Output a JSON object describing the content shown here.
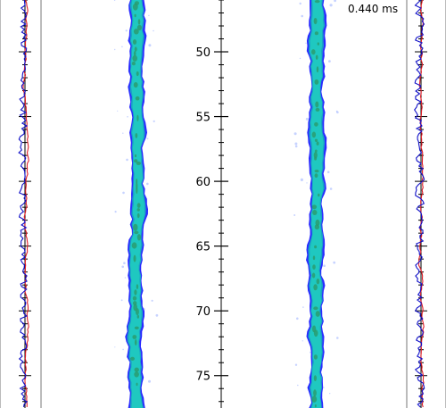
{
  "chart_data": {
    "type": "line",
    "time_label": "0.440 ms",
    "y_axis": {
      "range": [
        46,
        77.5
      ],
      "ticks": [
        50,
        55,
        60,
        65,
        70,
        75
      ],
      "tick_labels": [
        "50",
        "55",
        "60",
        "65",
        "70",
        "75"
      ],
      "minor_step": 1
    },
    "colors": {
      "jet_outer": "#2a2aff",
      "jet_mid": "#1aa0c8",
      "jet_core": "#1fc8c0",
      "jet_inner": "#2a9a6a",
      "profile_red": "#e0202a",
      "profile_blue": "#1010c8",
      "axis": "#000000"
    }
  }
}
